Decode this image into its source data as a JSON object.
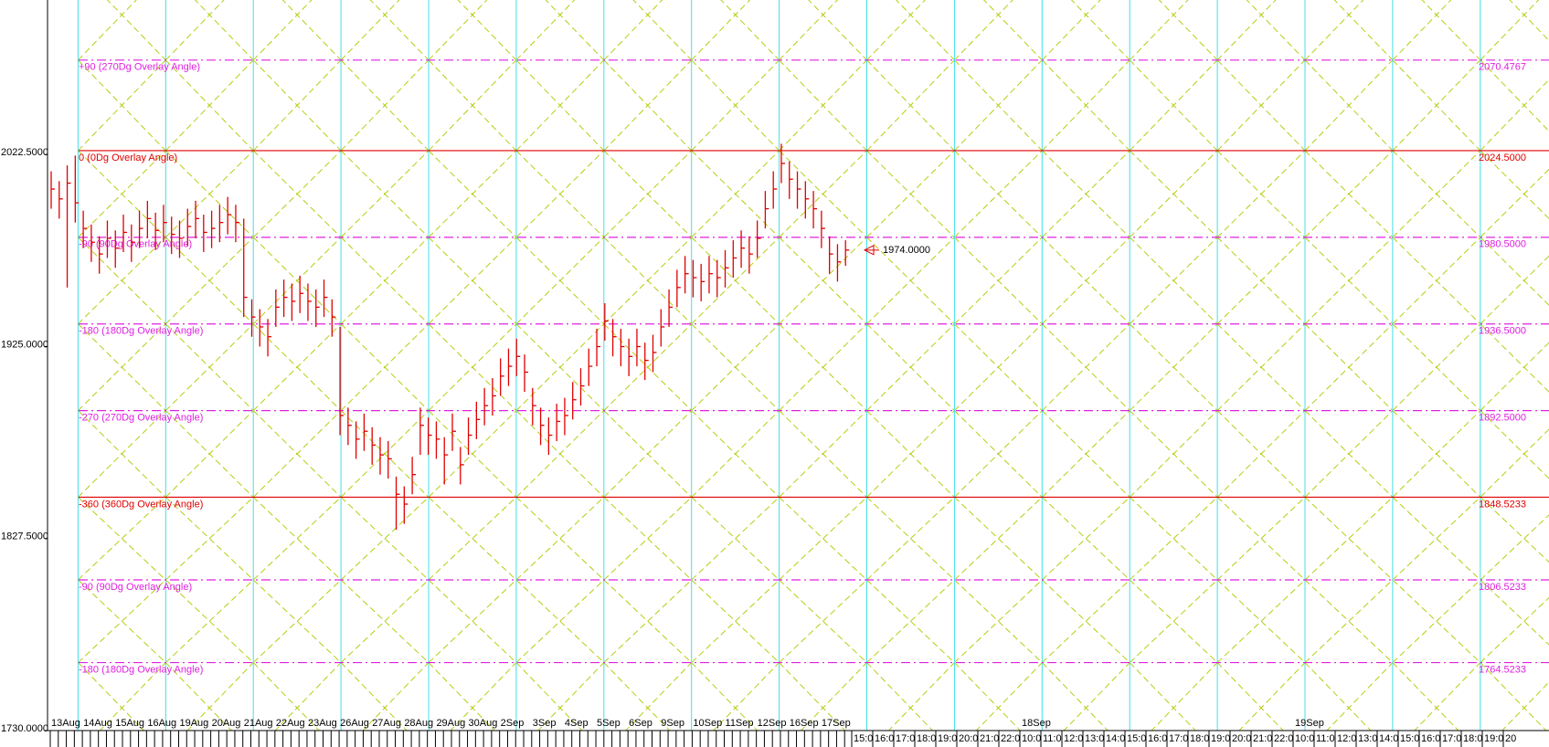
{
  "chart_data": {
    "type": "ohlc",
    "ylim": [
      1730,
      2101
    ],
    "yticks": [
      {
        "value": 2022.5,
        "label": "2022.5000"
      },
      {
        "value": 1925,
        "label": "1925.0000"
      },
      {
        "value": 1827.5,
        "label": "1827.5000"
      },
      {
        "value": 1730,
        "label": "1730.0000"
      }
    ],
    "categories": [
      "13Aug",
      "14Aug",
      "15Aug",
      "16Aug",
      "19Aug",
      "20Aug",
      "21Aug",
      "22Aug",
      "23Aug",
      "26Aug",
      "27Aug",
      "28Aug",
      "29Aug",
      "30Aug",
      "2Sep",
      "3Sep",
      "4Sep",
      "5Sep",
      "6Sep",
      "9Sep",
      "10Sep",
      "11Sep",
      "12Sep",
      "16Sep",
      "17Sep"
    ],
    "color": "#e00000",
    "high": [
      2014,
      2009,
      2017,
      2022,
      1994,
      1987,
      1981,
      1989,
      1984,
      1992,
      1987,
      1994,
      1999,
      1993,
      1997,
      1991,
      1989,
      1995,
      1999,
      1992,
      1994,
      1997,
      2001,
      1997,
      1990,
      1949,
      1944,
      1939,
      1954,
      1959,
      1957,
      1961,
      1957,
      1954,
      1959,
      1949,
      1935,
      1894,
      1887,
      1891,
      1884,
      1879,
      1877,
      1859,
      1854,
      1869,
      1894,
      1889,
      1887,
      1879,
      1891,
      1874,
      1889,
      1897,
      1904,
      1909,
      1919,
      1924,
      1929,
      1921,
      1904,
      1894,
      1889,
      1896,
      1899,
      1907,
      1914,
      1924,
      1934,
      1947,
      1939,
      1934,
      1929,
      1934,
      1927,
      1931,
      1944,
      1954,
      1964,
      1971,
      1969,
      1967,
      1971,
      1969,
      1974,
      1979,
      1984,
      1981,
      1989,
      2004,
      2014,
      2028,
      2019,
      2014,
      2009,
      2004,
      1994,
      1981,
      1977,
      1979
    ],
    "low": [
      1995,
      1990,
      1955,
      1988,
      1975,
      1968,
      1962,
      1970,
      1965,
      1973,
      1968,
      1975,
      1980,
      1974,
      1978,
      1972,
      1970,
      1976,
      1980,
      1973,
      1975,
      1978,
      1982,
      1978,
      1940,
      1930,
      1925,
      1920,
      1935,
      1940,
      1938,
      1942,
      1938,
      1935,
      1940,
      1930,
      1880,
      1875,
      1868,
      1872,
      1865,
      1860,
      1858,
      1832,
      1835,
      1850,
      1870,
      1870,
      1868,
      1855,
      1872,
      1855,
      1870,
      1878,
      1885,
      1890,
      1900,
      1905,
      1910,
      1902,
      1885,
      1875,
      1870,
      1877,
      1880,
      1888,
      1895,
      1905,
      1915,
      1928,
      1920,
      1915,
      1910,
      1915,
      1908,
      1912,
      1925,
      1935,
      1945,
      1952,
      1950,
      1948,
      1952,
      1950,
      1955,
      1960,
      1965,
      1962,
      1970,
      1985,
      1995,
      2008,
      2000,
      1995,
      1990,
      1985,
      1975,
      1962,
      1958,
      1966
    ],
    "close": [
      2005,
      2000,
      2008,
      1998,
      1985,
      1978,
      1972,
      1980,
      1975,
      1983,
      1978,
      1985,
      1990,
      1984,
      1988,
      1982,
      1980,
      1986,
      1990,
      1983,
      1985,
      1988,
      1992,
      1988,
      1950,
      1940,
      1935,
      1930,
      1945,
      1950,
      1948,
      1952,
      1948,
      1945,
      1950,
      1940,
      1890,
      1885,
      1878,
      1882,
      1875,
      1870,
      1868,
      1850,
      1845,
      1860,
      1885,
      1880,
      1878,
      1870,
      1882,
      1865,
      1880,
      1888,
      1895,
      1900,
      1910,
      1915,
      1920,
      1912,
      1895,
      1885,
      1880,
      1887,
      1890,
      1898,
      1905,
      1915,
      1925,
      1938,
      1930,
      1925,
      1920,
      1925,
      1918,
      1922,
      1935,
      1945,
      1955,
      1962,
      1960,
      1958,
      1962,
      1960,
      1965,
      1970,
      1975,
      1972,
      1980,
      1995,
      2005,
      2018,
      2010,
      2005,
      2000,
      1995,
      1985,
      1972,
      1968,
      1974
    ],
    "levels": [
      {
        "value": 2070.4767,
        "value_label": "2070.4767",
        "label": "+90 (270Dg Overlay Angle)",
        "color": "#e020e0",
        "style": "dashdot"
      },
      {
        "value": 2024.5,
        "value_label": "2024.5000",
        "label": "0 (0Dg Overlay Angle)",
        "color": "#e00000",
        "style": "solid"
      },
      {
        "value": 1980.5,
        "value_label": "1980.5000",
        "label": "-90 (90Dg Overlay Angle)",
        "color": "#e020e0",
        "style": "dashdot"
      },
      {
        "value": 1936.5,
        "value_label": "1936.5000",
        "label": "-180 (180Dg Overlay Angle)",
        "color": "#e020e0",
        "style": "dashdot"
      },
      {
        "value": 1892.5,
        "value_label": "1892.5000",
        "label": "-270 (270Dg Overlay Angle)",
        "color": "#e020e0",
        "style": "dashdot"
      },
      {
        "value": 1848.5233,
        "value_label": "1848.5233",
        "label": "-360 (360Dg Overlay Angle)",
        "color": "#e00000",
        "style": "solid"
      },
      {
        "value": 1806.5233,
        "value_label": "1806.5233",
        "label": "-90 (90Dg Overlay Angle)",
        "color": "#e020e0",
        "style": "dashdot"
      },
      {
        "value": 1764.5233,
        "value_label": "1764.5233",
        "label": "-180 (180Dg Overlay Angle)",
        "color": "#e020e0",
        "style": "dashdot"
      }
    ],
    "last_price": {
      "value": 1974,
      "label": "1974.0000"
    },
    "future_hours": [
      "15:0",
      "16:0",
      "17:0",
      "18:0",
      "19:0",
      "20:0",
      "21:0",
      "22:0",
      "10:0",
      "11:0",
      "12:0",
      "13:0",
      "14:0",
      "15:0",
      "16:0",
      "17:0",
      "18:0",
      "19:0",
      "20:0",
      "21:0",
      "22:0",
      "10:0",
      "11:0",
      "12:0",
      "13:0",
      "14:0",
      "15:0",
      "16:0",
      "17:0",
      "18:0",
      "19:0",
      "20"
    ],
    "future_days": [
      {
        "label": "18Sep",
        "at": 8
      },
      {
        "label": "19Sep",
        "at": 21
      }
    ]
  }
}
